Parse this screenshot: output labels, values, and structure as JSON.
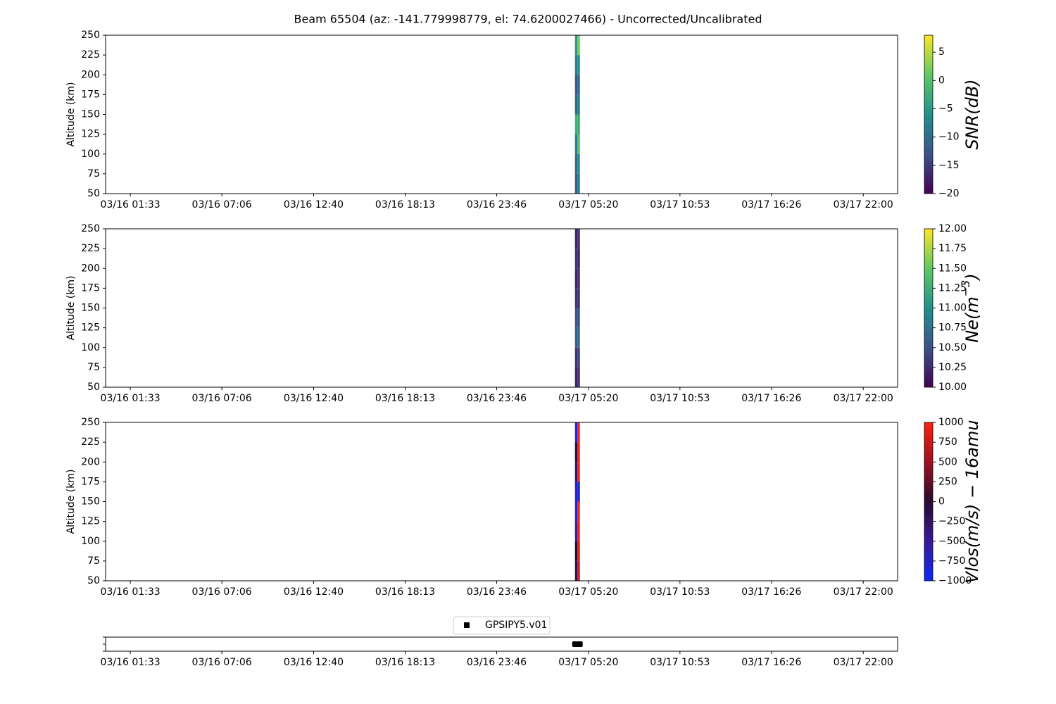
{
  "chart_data": [
    {
      "type": "heatmap",
      "title": "Beam 65504 (az: -141.779998779, el: 74.6200027466) - Uncorrected/Uncalibrated",
      "ylabel": "Altitude (km)",
      "xlim": [
        "03/16 00:03",
        "03/18 00:05"
      ],
      "xticks": [
        "03/16 01:33",
        "03/16 07:06",
        "03/16 12:40",
        "03/16 18:13",
        "03/16 23:46",
        "03/17 05:20",
        "03/17 10:53",
        "03/17 16:26",
        "03/17 22:00"
      ],
      "ylim": [
        50,
        250
      ],
      "yticks": [
        50,
        75,
        100,
        125,
        150,
        175,
        200,
        225,
        250
      ],
      "x": [
        "03/17 04:31",
        "03/17 04:40",
        "03/17 04:49"
      ],
      "y": [
        50,
        75,
        100,
        125,
        150,
        175,
        200,
        225,
        250
      ],
      "values": [
        [
          -12,
          -10,
          -8,
          -2,
          -10,
          -12,
          -8,
          -5
        ],
        [
          -8,
          -6,
          0,
          -3,
          -8,
          -10,
          -6,
          2
        ]
      ],
      "colorbar": {
        "label": [
          "SNR(dB)"
        ],
        "lim": [
          -20,
          8
        ],
        "ticks": [
          {
            "value": -20,
            "label": "−20"
          },
          {
            "value": -15,
            "label": "−15"
          },
          {
            "value": -10,
            "label": "−10"
          },
          {
            "value": -5,
            "label": "−5"
          },
          0,
          5
        ],
        "colors": [
          "#440154",
          "#3b528b",
          "#21918c",
          "#5ec962",
          "#fde725"
        ]
      }
    },
    {
      "type": "heatmap",
      "ylabel": "Altitude (km)",
      "xlim": [
        "03/16 00:03",
        "03/18 00:05"
      ],
      "xticks": [
        "03/16 01:33",
        "03/16 07:06",
        "03/16 12:40",
        "03/16 18:13",
        "03/16 23:46",
        "03/17 05:20",
        "03/17 10:53",
        "03/17 16:26",
        "03/17 22:00"
      ],
      "ylim": [
        50,
        250
      ],
      "yticks": [
        50,
        75,
        100,
        125,
        150,
        175,
        200,
        225,
        250
      ],
      "x": [
        "03/17 04:31",
        "03/17 04:40",
        "03/17 04:49"
      ],
      "y": [
        50,
        75,
        100,
        125,
        150,
        175,
        200,
        225,
        250
      ],
      "values": [
        [
          10.2,
          10.3,
          10.6,
          10.5,
          10.3,
          10.2,
          10.3,
          10.2
        ],
        [
          10.3,
          10.4,
          10.7,
          10.5,
          10.3,
          10.3,
          10.2,
          10.3
        ]
      ],
      "colorbar": {
        "label": [
          "Ne(m",
          "−3",
          ")"
        ],
        "lim": [
          10,
          12
        ],
        "ticks": [
          {
            "value": 10,
            "label": "10.00"
          },
          {
            "value": 10.25,
            "label": "10.25"
          },
          {
            "value": 10.5,
            "label": "10.50"
          },
          {
            "value": 10.75,
            "label": "10.75"
          },
          {
            "value": 11,
            "label": "11.00"
          },
          {
            "value": 11.25,
            "label": "11.25"
          },
          {
            "value": 11.5,
            "label": "11.50"
          },
          {
            "value": 11.75,
            "label": "11.75"
          },
          {
            "value": 12,
            "label": "12.00"
          }
        ],
        "colors": [
          "#440154",
          "#3b528b",
          "#21918c",
          "#5ec962",
          "#fde725"
        ]
      }
    },
    {
      "type": "heatmap",
      "ylabel": "Altitude (km)",
      "xlim": [
        "03/16 00:03",
        "03/18 00:05"
      ],
      "xticks": [
        "03/16 01:33",
        "03/16 07:06",
        "03/16 12:40",
        "03/16 18:13",
        "03/16 23:46",
        "03/17 05:20",
        "03/17 10:53",
        "03/17 16:26",
        "03/17 22:00"
      ],
      "ylim": [
        50,
        250
      ],
      "yticks": [
        50,
        75,
        100,
        125,
        150,
        175,
        200,
        225,
        250
      ],
      "x": [
        "03/17 04:31",
        "03/17 04:40",
        "03/17 04:49"
      ],
      "y": [
        50,
        75,
        100,
        125,
        150,
        175,
        200,
        225,
        250
      ],
      "values": [
        [
          -200,
          0,
          -500,
          -800,
          -800,
          -300,
          -100,
          -900
        ],
        [
          800,
          900,
          1000,
          1000,
          -700,
          1000,
          1000,
          1000
        ]
      ],
      "colorbar": {
        "label": [
          "Vlos(m/s) − 16amu"
        ],
        "lim": [
          -1000,
          1000
        ],
        "ticks": [
          {
            "value": -1000,
            "label": "−1000"
          },
          {
            "value": -750,
            "label": "−750"
          },
          {
            "value": -500,
            "label": "−500"
          },
          {
            "value": -250,
            "label": "−250"
          },
          0,
          250,
          500,
          750,
          1000
        ],
        "colors": [
          "#0a2aff",
          "#3a1a9a",
          "#2a0a30",
          "#a01020",
          "#ff2010"
        ]
      }
    },
    {
      "type": "scatter",
      "xlim": [
        "03/16 00:03",
        "03/18 00:05"
      ],
      "xticks": [
        "03/16 01:33",
        "03/16 07:06",
        "03/16 12:40",
        "03/16 18:13",
        "03/16 23:46",
        "03/17 05:20",
        "03/17 10:53",
        "03/17 16:26",
        "03/17 22:00"
      ],
      "ylim": [
        -1,
        1
      ],
      "yticks": [
        -1,
        0,
        1
      ],
      "legend": "upper center",
      "series": [
        {
          "name": "GPSIPY5.v01",
          "color": "#000000",
          "x": [
            "03/17 04:31",
            "03/17 04:35",
            "03/17 04:40",
            "03/17 04:45",
            "03/17 04:49"
          ],
          "values": [
            0,
            0,
            0,
            0,
            0
          ]
        }
      ]
    }
  ]
}
